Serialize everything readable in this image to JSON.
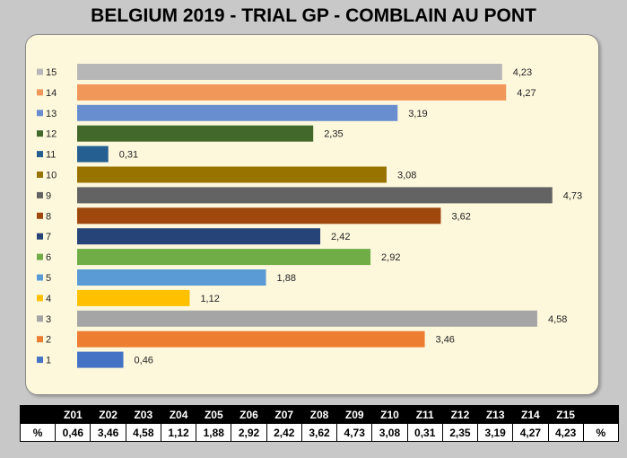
{
  "chart_data": {
    "type": "bar",
    "orientation": "horizontal",
    "title": "BELGIUM 2019 - TRIAL GP - COMBLAIN AU PONT",
    "categories": [
      "1",
      "2",
      "3",
      "4",
      "5",
      "6",
      "7",
      "8",
      "9",
      "10",
      "11",
      "12",
      "13",
      "14",
      "15"
    ],
    "values": [
      0.46,
      3.46,
      4.58,
      1.12,
      1.88,
      2.92,
      2.42,
      3.62,
      4.73,
      3.08,
      0.31,
      2.35,
      3.19,
      4.27,
      4.23
    ],
    "value_labels": [
      "0,46",
      "3,46",
      "4,58",
      "1,12",
      "1,88",
      "2,92",
      "2,42",
      "3,62",
      "4,73",
      "3,08",
      "0,31",
      "2,35",
      "3,19",
      "4,27",
      "4,23"
    ],
    "colors": [
      "#4472c4",
      "#ed7d31",
      "#a5a5a5",
      "#ffc000",
      "#5b9bd5",
      "#70ad47",
      "#264478",
      "#9e480e",
      "#636363",
      "#997300",
      "#255e91",
      "#43682b",
      "#698ed0",
      "#f1975a",
      "#b7b7b7"
    ],
    "xlim": [
      0,
      5
    ],
    "grid": false,
    "legend": "left"
  },
  "table": {
    "headers": [
      "",
      "Z01",
      "Z02",
      "Z03",
      "Z04",
      "Z05",
      "Z06",
      "Z07",
      "Z08",
      "Z09",
      "Z10",
      "Z11",
      "Z12",
      "Z13",
      "Z14",
      "Z15",
      ""
    ],
    "row_label": "%",
    "values": [
      "0,46",
      "3,46",
      "4,58",
      "1,12",
      "1,88",
      "2,92",
      "2,42",
      "3,62",
      "4,73",
      "3,08",
      "0,31",
      "2,35",
      "3,19",
      "4,27",
      "4,23"
    ],
    "row_end": "%"
  }
}
